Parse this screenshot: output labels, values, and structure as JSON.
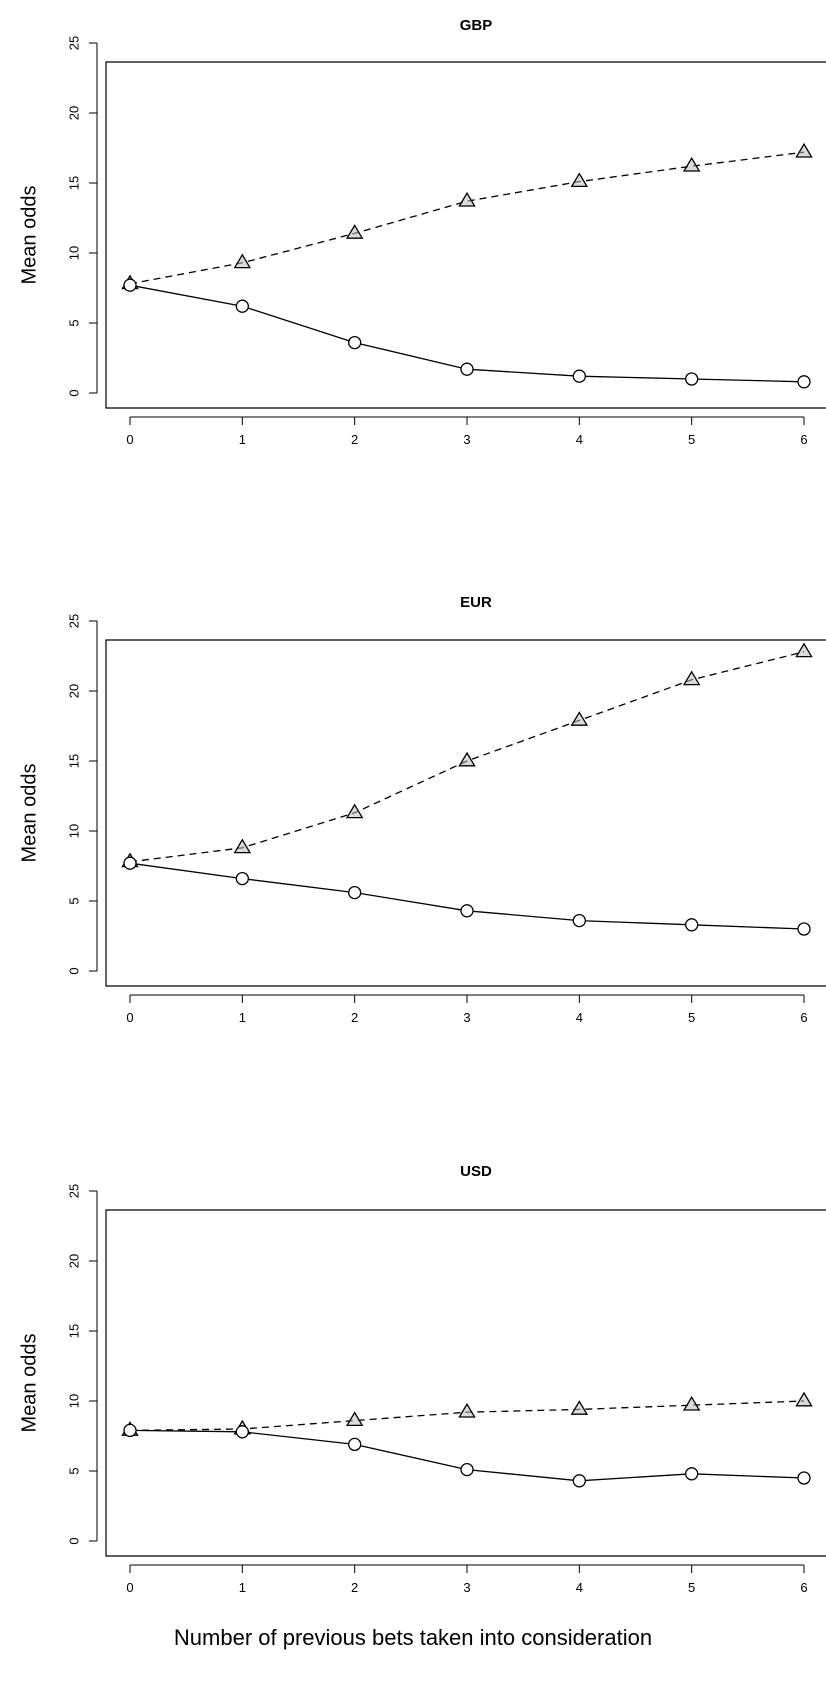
{
  "chart_data": [
    {
      "type": "line",
      "title": "GBP",
      "ylabel": "Mean odds",
      "xlabel": "",
      "x": [
        0,
        1,
        2,
        3,
        4,
        5,
        6
      ],
      "x_ticks": [
        "0",
        "1",
        "2",
        "3",
        "4",
        "5",
        "6"
      ],
      "y_ticks": [
        "0",
        "5",
        "10",
        "15",
        "20",
        "25"
      ],
      "xlim": [
        0,
        6
      ],
      "ylim": [
        0,
        25
      ],
      "grid": false,
      "series": [
        {
          "style": "dashed",
          "marker": "triangle",
          "values": [
            7.8,
            9.3,
            11.4,
            13.7,
            15.1,
            16.2,
            17.2
          ]
        },
        {
          "style": "solid",
          "marker": "circle",
          "values": [
            7.7,
            6.2,
            3.6,
            1.7,
            1.2,
            1.0,
            0.8
          ]
        }
      ]
    },
    {
      "type": "line",
      "title": "EUR",
      "ylabel": "Mean odds",
      "xlabel": "",
      "x": [
        0,
        1,
        2,
        3,
        4,
        5,
        6
      ],
      "x_ticks": [
        "0",
        "1",
        "2",
        "3",
        "4",
        "5",
        "6"
      ],
      "y_ticks": [
        "0",
        "5",
        "10",
        "15",
        "20",
        "25"
      ],
      "xlim": [
        0,
        6
      ],
      "ylim": [
        0,
        25
      ],
      "grid": false,
      "series": [
        {
          "style": "dashed",
          "marker": "triangle",
          "values": [
            7.8,
            8.8,
            11.3,
            15.0,
            17.9,
            20.8,
            22.8
          ]
        },
        {
          "style": "solid",
          "marker": "circle",
          "values": [
            7.7,
            6.6,
            5.6,
            4.3,
            3.6,
            3.3,
            3.0
          ]
        }
      ]
    },
    {
      "type": "line",
      "title": "USD",
      "ylabel": "Mean odds",
      "xlabel": "Number of previous bets taken into consideration",
      "x": [
        0,
        1,
        2,
        3,
        4,
        5,
        6
      ],
      "x_ticks": [
        "0",
        "1",
        "2",
        "3",
        "4",
        "5",
        "6"
      ],
      "y_ticks": [
        "0",
        "5",
        "10",
        "15",
        "20",
        "25"
      ],
      "xlim": [
        0,
        6
      ],
      "ylim": [
        0,
        25
      ],
      "grid": false,
      "series": [
        {
          "style": "dashed",
          "marker": "triangle",
          "values": [
            7.9,
            8.0,
            8.6,
            9.2,
            9.4,
            9.7,
            10.0
          ]
        },
        {
          "style": "solid",
          "marker": "circle",
          "values": [
            7.9,
            7.8,
            6.9,
            5.1,
            4.3,
            4.8,
            4.5
          ]
        }
      ]
    }
  ]
}
